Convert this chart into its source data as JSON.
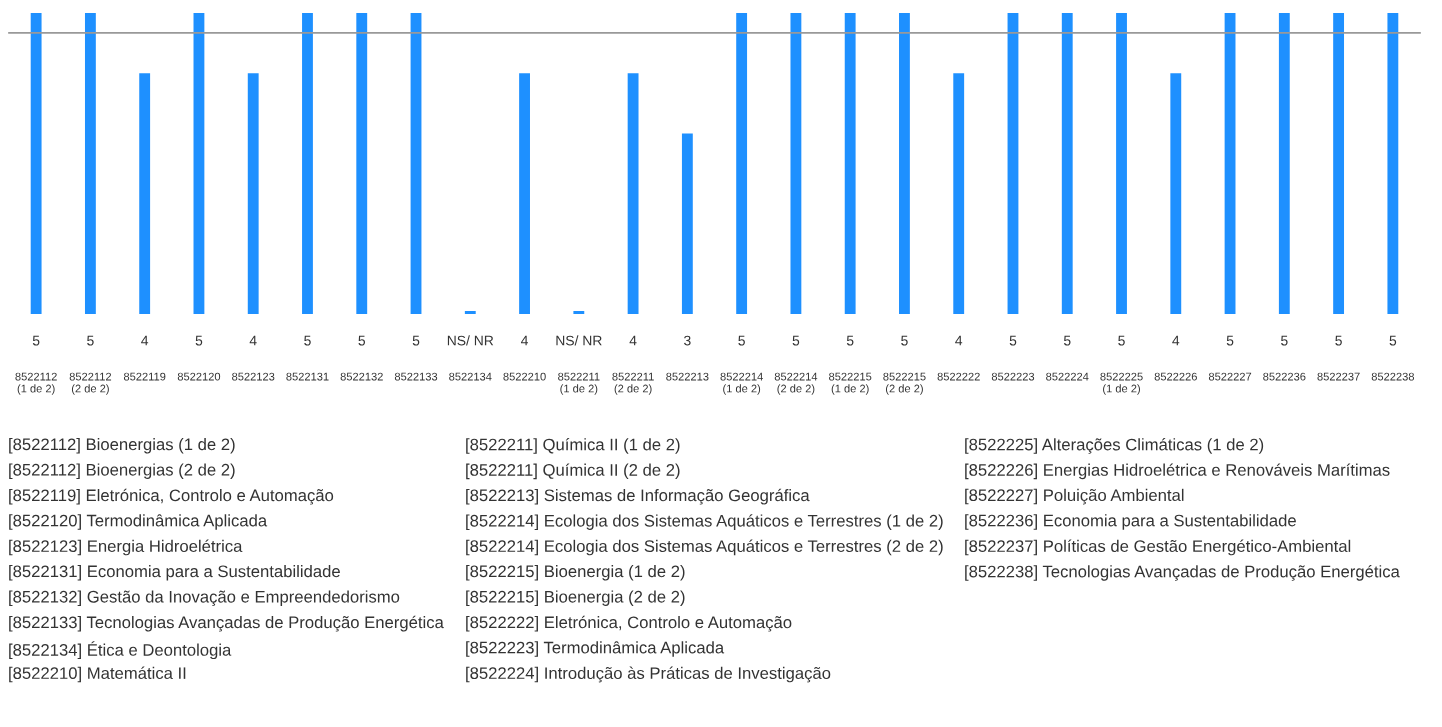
{
  "chart_data": {
    "type": "bar",
    "categories": [
      "8522112\n(1 de 2)",
      "8522112\n(2 de 2)",
      "8522119",
      "8522120",
      "8522123",
      "8522131",
      "8522132",
      "8522133",
      "8522134",
      "8522210",
      "8522211\n(1 de 2)",
      "8522211\n(2 de 2)",
      "8522213",
      "8522214\n(1 de 2)",
      "8522214\n(2 de 2)",
      "8522215\n(1 de 2)",
      "8522215\n(2 de 2)",
      "8522222",
      "8522223",
      "8522224",
      "8522225\n(1 de 2)",
      "8522226",
      "8522227",
      "8522236",
      "8522237",
      "8522238"
    ],
    "values": [
      5,
      5,
      4,
      5,
      4,
      5,
      5,
      5,
      0.05,
      4,
      0.05,
      4,
      3,
      5,
      5,
      5,
      5,
      4,
      5,
      5,
      5,
      4,
      5,
      5,
      5,
      5
    ],
    "value_labels": [
      "5",
      "5",
      "4",
      "5",
      "4",
      "5",
      "5",
      "5",
      "NS/ NR",
      "4",
      "NS/ NR",
      "4",
      "3",
      "5",
      "5",
      "5",
      "5",
      "4",
      "5",
      "5",
      "5",
      "4",
      "5",
      "5",
      "5",
      "5"
    ],
    "color": "#1e90ff",
    "ylim": [
      0,
      5
    ],
    "tick_labels": "x",
    "ref_lines": [
      {
        "axis": "y",
        "value": 4.67,
        "color": "#999999"
      }
    ],
    "annotations": [
      "[8522112] Bioenergias (1 de 2)",
      "[8522112] Bioenergias (2 de 2)",
      "[8522119] Eletrónica, Controlo e Automação",
      "[8522120] Termodinâmica Aplicada",
      "[8522123] Energia Hidroelétrica",
      "[8522131] Economia para a Sustentabilidade",
      "[8522132] Gestão da Inovação e Empreendedorismo",
      "[8522133] Tecnologias Avançadas de Produção Energética",
      "[8522134] Ética e Deontologia",
      "[8522210] Matemática II",
      "[8522211] Química II (1 de 2)",
      "[8522211] Química II (2 de 2)",
      "[8522213] Sistemas de Informação Geográfica",
      "[8522214] Ecologia dos Sistemas Aquáticos e Terrestres (1 de 2)",
      "[8522214] Ecologia dos Sistemas Aquáticos e Terrestres (2 de 2)",
      "[8522215] Bioenergia (1 de 2)",
      "[8522215] Bioenergia (2 de 2)",
      "[8522222] Eletrónica, Controlo e Automação",
      "[8522223] Termodinâmica Aplicada",
      "[8522224] Introdução às Práticas de Investigação",
      "[8522225] Alterações Climáticas (1 de 2)",
      "[8522226] Energias Hidroelétrica e Renováveis Marítimas",
      "[8522227] Poluição Ambiental",
      "[8522236] Economia para a Sustentabilidade",
      "[8522237] Políticas de Gestão Energético-Ambiental",
      "[8522238] Tecnologias Avançadas de Produção Energética"
    ]
  }
}
